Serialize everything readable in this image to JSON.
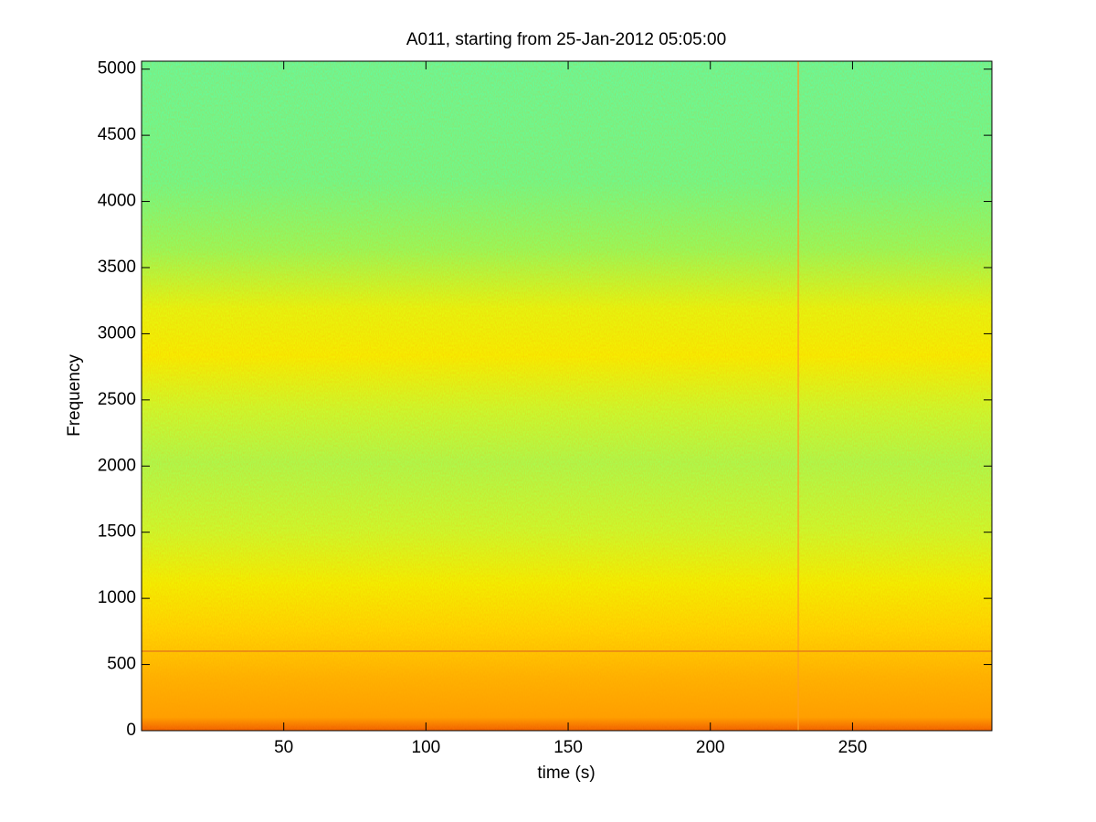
{
  "chart_data": {
    "type": "spectrogram",
    "title": "A011, starting from 25-Jan-2012 05:05:00",
    "x_label": "time (s)",
    "y_label": "Frequency",
    "xlim": [
      0,
      299
    ],
    "xticks": [
      50,
      100,
      150,
      200,
      250
    ],
    "ylim": [
      0,
      5060
    ],
    "yticks": [
      0,
      500,
      1000,
      1500,
      2000,
      2500,
      3000,
      3500,
      4000,
      4500,
      5000
    ],
    "grid": false
  }
}
